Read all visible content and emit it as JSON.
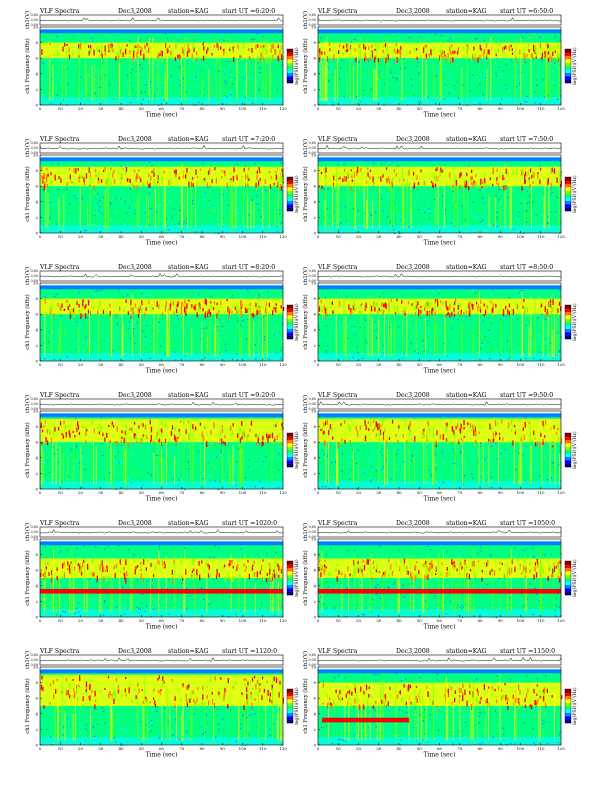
{
  "colors": {
    "ink": "#000000",
    "colormap": [
      "#000080",
      "#0000ff",
      "#0080ff",
      "#00ffff",
      "#00ff80",
      "#80ff00",
      "#ffff00",
      "#ff8000",
      "#ff0000",
      "#800000"
    ],
    "background": "#ffffff"
  },
  "chart_data": [
    {
      "type": "heatmap",
      "title_left": "VLF Spectra",
      "date": "Dec3,2008",
      "station": "station=KAG",
      "start": "start  UT =6:20:0",
      "top_ylabel": "ch1(V)",
      "top_yticks": [
        "0.00",
        "0.30",
        "0.60"
      ],
      "ylabel": "ch1 Frequency (kHz)",
      "yticks": [
        0,
        2,
        4,
        6,
        8,
        10
      ],
      "xlabel": "Time (sec)",
      "xticks": [
        0,
        10,
        20,
        30,
        40,
        50,
        60,
        70,
        80,
        90,
        100,
        110,
        120
      ],
      "colorbar_label": "log(PSD)(V²/Hz)",
      "band_kHz": [
        6,
        8
      ]
    },
    {
      "type": "heatmap",
      "title_left": "VLF Spectra",
      "date": "Dec3,2008",
      "station": "station=KAG",
      "start": "start  UT =6:50:0",
      "top_ylabel": "ch1(V)",
      "top_yticks": [
        "0.00",
        "0.30",
        "0.60"
      ],
      "ylabel": "ch1 Frequency (kHz)",
      "yticks": [
        0,
        2,
        4,
        6,
        8,
        10
      ],
      "xlabel": "Time (sec)",
      "xticks": [
        0,
        10,
        20,
        30,
        40,
        50,
        60,
        70,
        80,
        90,
        100,
        110,
        120
      ],
      "colorbar_label": "log(PSD)(V²/Hz)",
      "band_kHz": [
        6,
        8
      ]
    },
    {
      "type": "heatmap",
      "title_left": "VLF Spectra",
      "date": "Dec3,2008",
      "station": "station=KAG",
      "start": "start  UT =7:20:0",
      "top_ylabel": "ch1(V)",
      "top_yticks": [
        "0.00",
        "0.30",
        "0.60"
      ],
      "ylabel": "ch1 Frequency (kHz)",
      "yticks": [
        0,
        2,
        4,
        6,
        8,
        10
      ],
      "xlabel": "Time (sec)",
      "xticks": [
        0,
        10,
        20,
        30,
        40,
        50,
        60,
        70,
        80,
        90,
        100,
        110,
        120
      ],
      "colorbar_label": "log(PSD)(V²/Hz)",
      "band_kHz": [
        6,
        8.5
      ]
    },
    {
      "type": "heatmap",
      "title_left": "VLF Spectra",
      "date": "Dec3,2008",
      "station": "station=KAG",
      "start": "start  UT =7:50:0",
      "top_ylabel": "ch1(V)",
      "top_yticks": [
        "0.00",
        "0.30",
        "0.60"
      ],
      "ylabel": "ch1 Frequency (kHz)",
      "yticks": [
        0,
        2,
        4,
        6,
        8,
        10
      ],
      "xlabel": "Time (sec)",
      "xticks": [
        0,
        10,
        20,
        30,
        40,
        50,
        60,
        70,
        80,
        90,
        100,
        110,
        120
      ],
      "colorbar_label": "log(PSD)(V²/Hz)",
      "band_kHz": [
        6,
        8.5
      ]
    },
    {
      "type": "heatmap",
      "title_left": "VLF Spectra",
      "date": "Dec3,2008",
      "station": "station=KAG",
      "start": "start  UT =8:20:0",
      "top_ylabel": "ch1(V)",
      "top_yticks": [
        "0.00",
        "0.30",
        "0.60"
      ],
      "ylabel": "ch1 Frequency (kHz)",
      "yticks": [
        0,
        2,
        4,
        6,
        8,
        10
      ],
      "xlabel": "Time (sec)",
      "xticks": [
        0,
        10,
        20,
        30,
        40,
        50,
        60,
        70,
        80,
        90,
        100,
        110,
        120
      ],
      "colorbar_label": "log(PSD)(V²/Hz)",
      "band_kHz": [
        6,
        8
      ]
    },
    {
      "type": "heatmap",
      "title_left": "VLF Spectra",
      "date": "Dec3,2008",
      "station": "station=KAG",
      "start": "start  UT =8:50:0",
      "top_ylabel": "ch1(V)",
      "top_yticks": [
        "0.00",
        "0.30",
        "0.60"
      ],
      "ylabel": "ch1 Frequency (kHz)",
      "yticks": [
        0,
        2,
        4,
        6,
        8,
        10
      ],
      "xlabel": "Time (sec)",
      "xticks": [
        0,
        10,
        20,
        30,
        40,
        50,
        60,
        70,
        80,
        90,
        100,
        110,
        120
      ],
      "colorbar_label": "log(PSD)(V²/Hz)",
      "band_kHz": [
        6,
        8
      ]
    },
    {
      "type": "heatmap",
      "title_left": "VLF Spectra",
      "date": "Dec3,2008",
      "station": "station=KAG",
      "start": "start  UT =9:20:0",
      "top_ylabel": "ch1(V)",
      "top_yticks": [
        "0.00",
        "0.30",
        "0.60"
      ],
      "ylabel": "ch1 Frequency (kHz)",
      "yticks": [
        0,
        2,
        4,
        6,
        8,
        10
      ],
      "xlabel": "Time (sec)",
      "xticks": [
        0,
        10,
        20,
        30,
        40,
        50,
        60,
        70,
        80,
        90,
        100,
        110,
        120
      ],
      "colorbar_label": "log(PSD)(V²/Hz)",
      "band_kHz": [
        6,
        9
      ]
    },
    {
      "type": "heatmap",
      "title_left": "VLF Spectra",
      "date": "Dec3,2008",
      "station": "station=KAG",
      "start": "start  UT =9:50:0",
      "top_ylabel": "ch1(V)",
      "top_yticks": [
        "0.00",
        "0.30",
        "0.60"
      ],
      "ylabel": "ch1 Frequency (kHz)",
      "yticks": [
        0,
        2,
        4,
        6,
        8,
        10
      ],
      "xlabel": "Time (sec)",
      "xticks": [
        0,
        10,
        20,
        30,
        40,
        50,
        60,
        70,
        80,
        90,
        100,
        110,
        120
      ],
      "colorbar_label": "log(PSD)(V²/Hz)",
      "band_kHz": [
        6,
        9
      ]
    },
    {
      "type": "heatmap",
      "title_left": "VLF Spectra",
      "date": "Dec3,2008",
      "station": "station=KAG",
      "start": "start  UT =1020:0",
      "top_ylabel": "ch1(V)",
      "top_yticks": [
        "0.00",
        "0.30",
        "0.60"
      ],
      "ylabel": "ch1 Frequency (kHz)",
      "yticks": [
        0,
        2,
        4,
        6,
        8,
        10
      ],
      "xlabel": "Time (sec)",
      "xticks": [
        0,
        10,
        20,
        30,
        40,
        50,
        60,
        70,
        80,
        90,
        100,
        110,
        120
      ],
      "colorbar_label": "log(PSD)(V²/Hz)",
      "band_kHz": [
        5,
        7.5
      ],
      "line_kHz": 3.3
    },
    {
      "type": "heatmap",
      "title_left": "VLF Spectra",
      "date": "Dec3,2008",
      "station": "station=KAG",
      "start": "start  UT =1050:0",
      "top_ylabel": "ch1(V)",
      "top_yticks": [
        "0.00",
        "0.30",
        "0.60"
      ],
      "ylabel": "ch1 Frequency (kHz)",
      "yticks": [
        0,
        2,
        4,
        6,
        8,
        10
      ],
      "xlabel": "Time (sec)",
      "xticks": [
        0,
        10,
        20,
        30,
        40,
        50,
        60,
        70,
        80,
        90,
        100,
        110,
        120
      ],
      "colorbar_label": "log(PSD)(V²/Hz)",
      "band_kHz": [
        5,
        7.5
      ],
      "line_kHz": 3.3
    },
    {
      "type": "heatmap",
      "title_left": "VLF Spectra",
      "date": "Dec3,2008",
      "station": "station=KAG",
      "start": "start  UT =1120:0",
      "top_ylabel": "ch1(V)",
      "top_yticks": [
        "0.00",
        "0.30",
        "0.60"
      ],
      "ylabel": "ch1 Frequency (kHz)",
      "yticks": [
        0,
        2,
        4,
        6,
        8,
        10
      ],
      "xlabel": "Time (sec)",
      "xticks": [
        0,
        10,
        20,
        30,
        40,
        50,
        60,
        70,
        80,
        90,
        100,
        110,
        120
      ],
      "colorbar_label": "log(PSD)(V²/Hz)",
      "band_kHz": [
        5,
        9
      ]
    },
    {
      "type": "heatmap",
      "title_left": "VLF Spectra",
      "date": "Dec3,2008",
      "station": "station=KAG",
      "start": "start  UT =1150:0",
      "top_ylabel": "ch1(V)",
      "top_yticks": [
        "0.00",
        "0.30",
        "0.60"
      ],
      "ylabel": "ch1 Frequency (kHz)",
      "yticks": [
        0,
        2,
        4,
        6,
        8,
        10
      ],
      "xlabel": "Time (sec)",
      "xticks": [
        0,
        10,
        20,
        30,
        40,
        50,
        60,
        70,
        80,
        90,
        100,
        110,
        120
      ],
      "colorbar_label": "log(PSD)(V²/Hz)",
      "band_kHz": [
        5,
        8
      ],
      "line_kHz": 3.2,
      "line_t_range": [
        2,
        45
      ]
    }
  ]
}
